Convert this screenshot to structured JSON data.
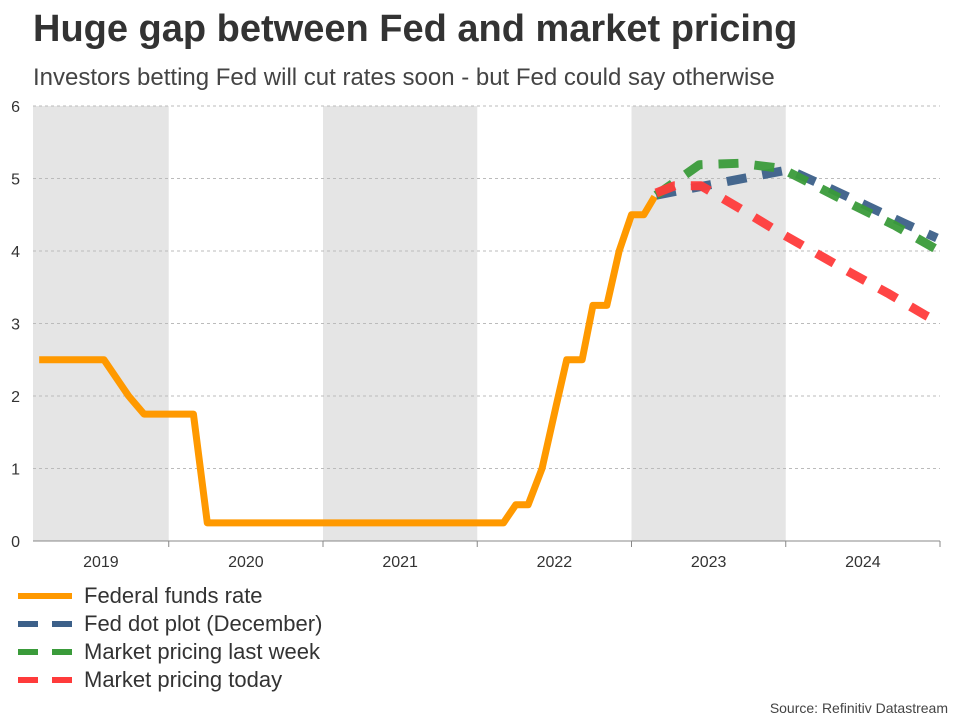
{
  "title": "Huge gap between Fed and market pricing",
  "subtitle": "Investors betting Fed will cut rates soon - but Fed could say otherwise",
  "source": "Source: Refinitiv Datastream",
  "chart_data": {
    "type": "line",
    "xlim": [
      2019.12,
      2025.0
    ],
    "ylim": [
      0,
      6
    ],
    "yticks": [
      "0",
      "1",
      "2",
      "3",
      "4",
      "5",
      "6"
    ],
    "xticks": [
      "2019",
      "2020",
      "2021",
      "2022",
      "2023",
      "2024"
    ],
    "shaded_years": [
      "2019",
      "2021",
      "2023"
    ],
    "grid": true,
    "legend_placement": "bottom-left",
    "series": [
      {
        "name": "Federal funds rate",
        "color": "#ff9900",
        "dash": false,
        "x": [
          2019.16,
          2019.58,
          2019.74,
          2019.84,
          2020.16,
          2020.25,
          2022.17,
          2022.25,
          2022.33,
          2022.42,
          2022.51,
          2022.58,
          2022.68,
          2022.75,
          2022.84,
          2022.92,
          2023.0,
          2023.08,
          2023.15
        ],
        "y": [
          2.5,
          2.5,
          2.0,
          1.75,
          1.75,
          0.25,
          0.25,
          0.5,
          0.5,
          1.0,
          1.85,
          2.5,
          2.5,
          3.25,
          3.25,
          4.0,
          4.5,
          4.5,
          4.75
        ]
      },
      {
        "name": "Fed dot plot (December)",
        "color": "#3c6089",
        "dash": true,
        "x": [
          2023.16,
          2023.5,
          2023.77,
          2024.02,
          2024.28,
          2024.53,
          2024.77,
          2024.98
        ],
        "y": [
          4.77,
          4.91,
          5.02,
          5.12,
          4.87,
          4.62,
          4.38,
          4.18
        ]
      },
      {
        "name": "Market pricing last week",
        "color": "#3a9b3a",
        "dash": true,
        "x": [
          2023.16,
          2023.44,
          2023.7,
          2023.97,
          2024.21,
          2024.45,
          2024.7,
          2024.98
        ],
        "y": [
          4.77,
          5.19,
          5.21,
          5.14,
          4.88,
          4.62,
          4.36,
          4.02
        ]
      },
      {
        "name": "Market pricing today",
        "color": "#ff3b3b",
        "dash": true,
        "x": [
          2023.16,
          2023.28,
          2023.45,
          2023.7,
          2023.94,
          2024.18,
          2024.42,
          2024.66,
          2024.9,
          2024.98
        ],
        "y": [
          4.8,
          4.9,
          4.9,
          4.59,
          4.28,
          3.99,
          3.7,
          3.42,
          3.12,
          3.03
        ]
      }
    ]
  }
}
